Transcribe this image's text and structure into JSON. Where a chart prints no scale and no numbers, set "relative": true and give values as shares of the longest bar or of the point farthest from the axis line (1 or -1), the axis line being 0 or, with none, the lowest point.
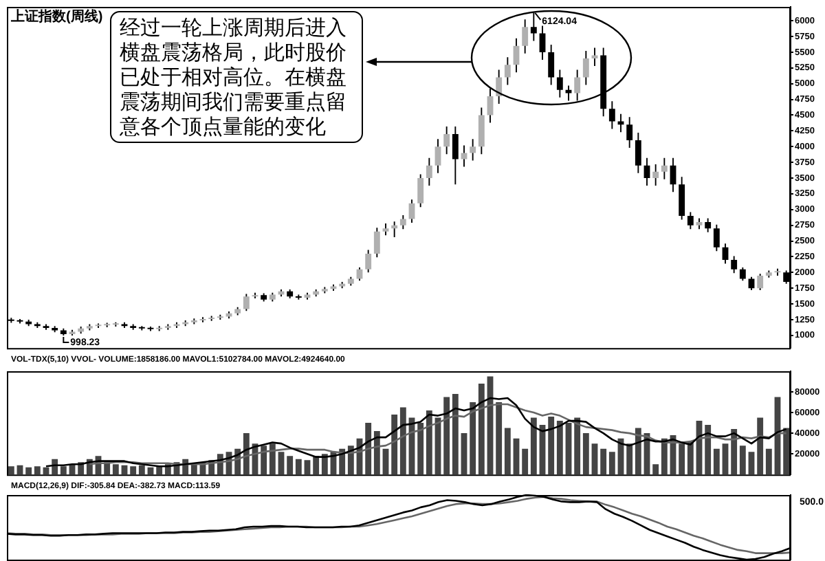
{
  "chart_data": [
    {
      "type": "candlestick",
      "title": "上证指数(周线)",
      "color": "#000000",
      "ylim": [
        800,
        6220
      ],
      "yticks": [
        1000,
        1250,
        1500,
        1750,
        2000,
        2250,
        2500,
        2750,
        3000,
        3250,
        3500,
        3750,
        4000,
        4250,
        4500,
        4750,
        5000,
        5250,
        5500,
        5750,
        6000
      ],
      "categories": [
        null,
        null,
        null,
        null,
        null,
        null,
        null,
        null,
        null,
        null,
        null,
        null,
        null,
        null,
        null,
        null,
        null,
        null,
        null,
        null,
        null,
        null,
        null,
        null,
        null,
        null,
        null,
        null,
        null,
        null,
        null,
        null,
        null,
        null,
        null,
        null,
        null,
        null,
        null,
        null,
        null,
        null,
        null,
        null,
        null,
        null,
        null,
        null,
        null,
        null,
        null,
        null,
        null,
        null,
        null,
        null,
        null,
        null,
        null,
        null,
        null,
        null,
        null,
        null,
        null,
        null,
        null,
        null,
        null,
        null,
        null,
        null,
        null,
        null,
        null,
        null,
        null,
        null,
        null,
        null,
        null,
        null,
        null,
        null,
        null,
        null,
        null,
        null,
        null,
        null
      ],
      "ohlc": [
        [
          1250,
          1280,
          1200,
          1230
        ],
        [
          1230,
          1260,
          1190,
          1220
        ],
        [
          1220,
          1250,
          1150,
          1180
        ],
        [
          1180,
          1210,
          1120,
          1150
        ],
        [
          1150,
          1180,
          1090,
          1120
        ],
        [
          1120,
          1150,
          1050,
          1080
        ],
        [
          1080,
          1110,
          998.23,
          1020
        ],
        [
          1020,
          1090,
          1000,
          1060
        ],
        [
          1060,
          1140,
          1030,
          1110
        ],
        [
          1110,
          1180,
          1080,
          1150
        ],
        [
          1150,
          1190,
          1120,
          1160
        ],
        [
          1160,
          1200,
          1130,
          1170
        ],
        [
          1170,
          1210,
          1140,
          1180
        ],
        [
          1180,
          1210,
          1120,
          1150
        ],
        [
          1150,
          1180,
          1090,
          1120
        ],
        [
          1120,
          1150,
          1080,
          1110
        ],
        [
          1110,
          1140,
          1070,
          1100
        ],
        [
          1100,
          1150,
          1070,
          1120
        ],
        [
          1120,
          1180,
          1090,
          1150
        ],
        [
          1150,
          1210,
          1120,
          1180
        ],
        [
          1180,
          1240,
          1150,
          1210
        ],
        [
          1210,
          1270,
          1180,
          1240
        ],
        [
          1240,
          1290,
          1210,
          1260
        ],
        [
          1260,
          1310,
          1230,
          1280
        ],
        [
          1280,
          1330,
          1250,
          1300
        ],
        [
          1300,
          1380,
          1270,
          1350
        ],
        [
          1350,
          1450,
          1320,
          1420
        ],
        [
          1420,
          1660,
          1390,
          1620
        ],
        [
          1620,
          1680,
          1590,
          1640
        ],
        [
          1640,
          1670,
          1540,
          1570
        ],
        [
          1570,
          1680,
          1540,
          1650
        ],
        [
          1650,
          1730,
          1620,
          1700
        ],
        [
          1700,
          1730,
          1590,
          1620
        ],
        [
          1620,
          1650,
          1570,
          1600
        ],
        [
          1600,
          1680,
          1570,
          1650
        ],
        [
          1650,
          1730,
          1620,
          1700
        ],
        [
          1700,
          1770,
          1670,
          1740
        ],
        [
          1740,
          1810,
          1710,
          1780
        ],
        [
          1780,
          1850,
          1750,
          1820
        ],
        [
          1820,
          1930,
          1790,
          1900
        ],
        [
          1900,
          2080,
          1870,
          2050
        ],
        [
          2050,
          2360,
          2000,
          2300
        ],
        [
          2300,
          2710,
          2240,
          2650
        ],
        [
          2650,
          2780,
          2590,
          2700
        ],
        [
          2700,
          2810,
          2560,
          2750
        ],
        [
          2750,
          2910,
          2690,
          2850
        ],
        [
          2850,
          3160,
          2790,
          3100
        ],
        [
          3100,
          3560,
          3040,
          3500
        ],
        [
          3500,
          3820,
          3380,
          3700
        ],
        [
          3700,
          4120,
          3580,
          4000
        ],
        [
          4000,
          4320,
          3880,
          4200
        ],
        [
          4200,
          4320,
          3400,
          3800
        ],
        [
          3800,
          4020,
          3680,
          3900
        ],
        [
          3900,
          4120,
          3780,
          4000
        ],
        [
          4000,
          4620,
          3880,
          4500
        ],
        [
          4500,
          4920,
          4380,
          4800
        ],
        [
          4800,
          5220,
          4680,
          5100
        ],
        [
          5100,
          5420,
          4980,
          5300
        ],
        [
          5300,
          5720,
          5180,
          5600
        ],
        [
          5600,
          6020,
          5480,
          5900
        ],
        [
          5900,
          6124.04,
          5680,
          5800
        ],
        [
          5800,
          5920,
          5380,
          5500
        ],
        [
          5500,
          5620,
          4980,
          5100
        ],
        [
          5100,
          5220,
          4780,
          4900
        ],
        [
          4900,
          4970,
          4730,
          4850
        ],
        [
          4850,
          5220,
          4730,
          5100
        ],
        [
          5100,
          5520,
          4980,
          5400
        ],
        [
          5400,
          5570,
          5280,
          5450
        ],
        [
          5450,
          5570,
          4480,
          4600
        ],
        [
          4600,
          4720,
          4280,
          4400
        ],
        [
          4400,
          4520,
          4230,
          4350
        ],
        [
          4350,
          4470,
          3980,
          4100
        ],
        [
          4100,
          4220,
          3580,
          3700
        ],
        [
          3700,
          3820,
          3380,
          3500
        ],
        [
          3500,
          3720,
          3380,
          3600
        ],
        [
          3600,
          3820,
          3480,
          3700
        ],
        [
          3700,
          3820,
          3280,
          3400
        ],
        [
          3400,
          3520,
          2840,
          2900
        ],
        [
          2900,
          2960,
          2690,
          2750
        ],
        [
          2750,
          2860,
          2690,
          2800
        ],
        [
          2800,
          2860,
          2640,
          2700
        ],
        [
          2700,
          2760,
          2340,
          2400
        ],
        [
          2400,
          2460,
          2140,
          2200
        ],
        [
          2200,
          2260,
          1990,
          2050
        ],
        [
          2050,
          2080,
          1870,
          1900
        ],
        [
          1900,
          1930,
          1720,
          1750
        ],
        [
          1750,
          1980,
          1720,
          1950
        ],
        [
          1950,
          2030,
          1920,
          2000
        ],
        [
          2000,
          2060,
          1950,
          2000
        ],
        [
          2000,
          2030,
          1820,
          1850
        ]
      ],
      "colors": [
        "#000000",
        "#000000",
        "#000000",
        "#000000",
        "#000000",
        "#000000",
        "#000000",
        "#b0b0b0",
        "#b0b0b0",
        "#b0b0b0",
        "#b0b0b0",
        "#b0b0b0",
        "#b0b0b0",
        "#000000",
        "#000000",
        "#000000",
        "#000000",
        "#b0b0b0",
        "#b0b0b0",
        "#b0b0b0",
        "#b0b0b0",
        "#b0b0b0",
        "#b0b0b0",
        "#b0b0b0",
        "#b0b0b0",
        "#b0b0b0",
        "#b0b0b0",
        "#b0b0b0",
        "#b0b0b0",
        "#000000",
        "#b0b0b0",
        "#b0b0b0",
        "#000000",
        "#000000",
        "#b0b0b0",
        "#b0b0b0",
        "#b0b0b0",
        "#b0b0b0",
        "#b0b0b0",
        "#b0b0b0",
        "#b0b0b0",
        "#b0b0b0",
        "#b0b0b0",
        "#b0b0b0",
        "#b0b0b0",
        "#b0b0b0",
        "#b0b0b0",
        "#b0b0b0",
        "#b0b0b0",
        "#b0b0b0",
        "#b0b0b0",
        "#000000",
        "#b0b0b0",
        "#b0b0b0",
        "#b0b0b0",
        "#b0b0b0",
        "#b0b0b0",
        "#b0b0b0",
        "#b0b0b0",
        "#b0b0b0",
        "#000000",
        "#000000",
        "#000000",
        "#000000",
        "#000000",
        "#b0b0b0",
        "#b0b0b0",
        "#b0b0b0",
        "#000000",
        "#000000",
        "#000000",
        "#000000",
        "#000000",
        "#000000",
        "#b0b0b0",
        "#b0b0b0",
        "#000000",
        "#000000",
        "#000000",
        "#b0b0b0",
        "#000000",
        "#000000",
        "#000000",
        "#000000",
        "#000000",
        "#000000",
        "#b0b0b0",
        "#b0b0b0",
        "#b0b0b0",
        "#000000"
      ],
      "annotations": [
        "经过一轮上涨周期后进入横盘震荡格局，此时股价已处于相对高位。在横盘震荡期间我们需要重点留意各个顶点量能的变化",
        "6124.04",
        "998.23"
      ]
    },
    {
      "type": "bar",
      "title": "VOL-TDX(5,10) VVOL- VOLUME:1858186.00 MAVOL1:5102784.00 MAVOL2:4924640.00",
      "ylim": [
        0,
        100000
      ],
      "yticks": [
        20000,
        40000,
        60000,
        80000
      ],
      "marker": "none",
      "categories": [
        null,
        null,
        null,
        null,
        null,
        null,
        null,
        null,
        null,
        null,
        null,
        null,
        null,
        null,
        null,
        null,
        null,
        null,
        null,
        null,
        null,
        null,
        null,
        null,
        null,
        null,
        null,
        null,
        null,
        null,
        null,
        null,
        null,
        null,
        null,
        null,
        null,
        null,
        null,
        null,
        null,
        null,
        null,
        null,
        null,
        null,
        null,
        null,
        null,
        null,
        null,
        null,
        null,
        null,
        null,
        null,
        null,
        null,
        null,
        null,
        null,
        null,
        null,
        null,
        null,
        null,
        null,
        null,
        null,
        null,
        null,
        null,
        null,
        null,
        null,
        null,
        null,
        null,
        null,
        null,
        null,
        null,
        null,
        null,
        null,
        null,
        null,
        null,
        null,
        null
      ],
      "series": [
        {
          "type": "bar",
          "color": "#444444",
          "values": [
            8000,
            9000,
            7000,
            8000,
            7000,
            15000,
            8000,
            10000,
            12000,
            15000,
            18000,
            12000,
            10000,
            9000,
            8000,
            9000,
            7000,
            8000,
            10000,
            12000,
            15000,
            10000,
            12000,
            14000,
            20000,
            22000,
            25000,
            40000,
            30000,
            28000,
            30000,
            22000,
            18000,
            15000,
            14000,
            18000,
            20000,
            22000,
            25000,
            28000,
            35000,
            50000,
            42000,
            25000,
            58000,
            65000,
            55000,
            50000,
            62000,
            55000,
            75000,
            78000,
            40000,
            70000,
            88000,
            95000,
            70000,
            45000,
            35000,
            25000,
            55000,
            48000,
            56000,
            52000,
            50000,
            55000,
            40000,
            30000,
            25000,
            22000,
            35000,
            30000,
            45000,
            40000,
            10000,
            35000,
            38000,
            30000,
            32000,
            52000,
            48000,
            25000,
            30000,
            44000,
            28000,
            22000,
            55000,
            25000,
            75000,
            45000
          ]
        },
        {
          "type": "line",
          "color": "#000000",
          "values": [
            null,
            null,
            null,
            null,
            8000,
            9000,
            9000,
            10000,
            10000,
            12000,
            13000,
            13000,
            13000,
            13000,
            11000,
            10000,
            9000,
            8000,
            8000,
            9000,
            10000,
            11000,
            12000,
            13000,
            14000,
            16000,
            19000,
            24000,
            27000,
            29000,
            31000,
            30000,
            26000,
            23000,
            20000,
            17000,
            17000,
            18000,
            20000,
            23000,
            26000,
            32000,
            36000,
            36000,
            42000,
            48000,
            49000,
            51000,
            58000,
            57000,
            59000,
            64000,
            62000,
            64000,
            70000,
            74000,
            73000,
            74000,
            67000,
            54000,
            46000,
            42000,
            44000,
            47000,
            52000,
            52000,
            51000,
            45000,
            40000,
            34000,
            30000,
            28000,
            31000,
            34000,
            32000,
            32000,
            34000,
            31000,
            29000,
            37000,
            40000,
            37000,
            37000,
            40000,
            35000,
            30000,
            36000,
            35000,
            41000,
            44000
          ]
        },
        {
          "type": "line",
          "color": "#666666",
          "values": [
            null,
            null,
            null,
            null,
            null,
            null,
            null,
            null,
            null,
            10000,
            11000,
            11000,
            12000,
            12000,
            12000,
            11000,
            11000,
            11000,
            11000,
            10000,
            10000,
            10000,
            10000,
            11000,
            12000,
            13000,
            15000,
            18000,
            20000,
            22000,
            23000,
            24000,
            25000,
            25000,
            24000,
            24000,
            24000,
            22000,
            21000,
            21000,
            22000,
            25000,
            27000,
            28000,
            32000,
            37000,
            41000,
            43000,
            47000,
            50000,
            54000,
            57000,
            56000,
            61000,
            64000,
            67000,
            68000,
            68000,
            65000,
            62000,
            60000,
            57000,
            59000,
            57000,
            53000,
            49000,
            46000,
            45000,
            44000,
            43000,
            41000,
            40000,
            38000,
            37000,
            33000,
            31000,
            31000,
            31000,
            32000,
            35000,
            36000,
            36000,
            34000,
            34000,
            36000,
            35000,
            37000,
            36000,
            40000,
            40000
          ]
        }
      ]
    },
    {
      "type": "line",
      "title": "MACD(12,26,9) DIF:-305.84 DEA:-382.73 MACD:113.59",
      "relative": true,
      "marker": "none",
      "annotations": [
        "500.0"
      ],
      "categories": [
        null,
        null,
        null,
        null,
        null,
        null,
        null,
        null,
        null,
        null,
        null,
        null,
        null,
        null,
        null,
        null,
        null,
        null,
        null,
        null,
        null,
        null,
        null,
        null,
        null,
        null,
        null,
        null,
        null,
        null,
        null,
        null,
        null,
        null,
        null,
        null,
        null,
        null,
        null,
        null,
        null,
        null,
        null,
        null,
        null,
        null,
        null,
        null,
        null,
        null,
        null,
        null,
        null,
        null,
        null,
        null,
        null,
        null,
        null,
        null,
        null,
        null,
        null,
        null,
        null,
        null,
        null,
        null,
        null,
        null,
        null,
        null,
        null,
        null,
        null,
        null,
        null,
        null,
        null,
        null,
        null,
        null,
        null,
        null,
        null,
        null,
        null,
        null,
        null,
        null
      ],
      "series": [
        {
          "color": "#000000",
          "values": [
            0.4,
            0.39,
            0.39,
            0.38,
            0.38,
            0.37,
            0.37,
            0.38,
            0.38,
            0.39,
            0.39,
            0.4,
            0.41,
            0.41,
            0.41,
            0.41,
            0.41,
            0.41,
            0.42,
            0.42,
            0.43,
            0.43,
            0.44,
            0.45,
            0.45,
            0.46,
            0.47,
            0.5,
            0.51,
            0.51,
            0.52,
            0.52,
            0.51,
            0.51,
            0.5,
            0.5,
            0.5,
            0.5,
            0.51,
            0.51,
            0.53,
            0.57,
            0.61,
            0.65,
            0.69,
            0.73,
            0.76,
            0.81,
            0.84,
            0.89,
            0.92,
            0.91,
            0.89,
            0.86,
            0.84,
            0.86,
            0.9,
            0.93,
            0.97,
            1,
            0.99,
            0.97,
            0.93,
            0.9,
            0.89,
            0.89,
            0.9,
            0.89,
            0.78,
            0.71,
            0.66,
            0.6,
            0.53,
            0.46,
            0.41,
            0.36,
            0.31,
            0.26,
            0.2,
            0.15,
            0.11,
            0.07,
            0.04,
            0.02,
            0,
            0.01,
            0.04,
            0.09,
            0.13,
            0.18
          ]
        },
        {
          "color": "#666666",
          "values": [
            0.41,
            0.4,
            0.4,
            0.39,
            0.39,
            0.38,
            0.38,
            0.38,
            0.38,
            0.38,
            0.39,
            0.39,
            0.39,
            0.4,
            0.4,
            0.4,
            0.41,
            0.41,
            0.41,
            0.41,
            0.42,
            0.42,
            0.43,
            0.43,
            0.44,
            0.45,
            0.46,
            0.47,
            0.48,
            0.49,
            0.5,
            0.5,
            0.51,
            0.51,
            0.51,
            0.5,
            0.5,
            0.5,
            0.5,
            0.51,
            0.51,
            0.53,
            0.55,
            0.58,
            0.61,
            0.64,
            0.67,
            0.71,
            0.75,
            0.79,
            0.83,
            0.86,
            0.87,
            0.87,
            0.86,
            0.86,
            0.87,
            0.89,
            0.91,
            0.94,
            0.96,
            0.97,
            0.95,
            0.94,
            0.92,
            0.91,
            0.9,
            0.9,
            0.85,
            0.81,
            0.76,
            0.71,
            0.67,
            0.62,
            0.57,
            0.51,
            0.47,
            0.42,
            0.37,
            0.33,
            0.28,
            0.23,
            0.19,
            0.15,
            0.13,
            0.1,
            0.1,
            0.1,
            0.1,
            0.11
          ]
        }
      ]
    }
  ]
}
